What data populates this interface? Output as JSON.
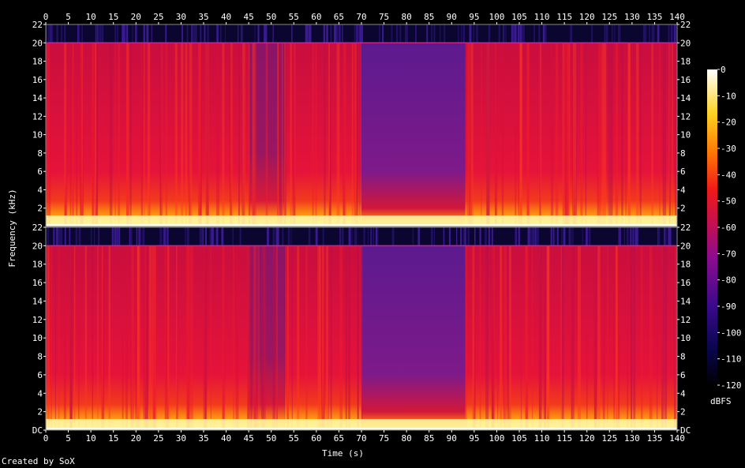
{
  "chart_data": {
    "type": "heatmap",
    "title": "",
    "xlabel": "Time (s)",
    "ylabel": "Frequency (kHz)",
    "xlim": [
      0,
      140
    ],
    "ylim": [
      0,
      22
    ],
    "x_ticks": [
      "0",
      "5",
      "10",
      "15",
      "20",
      "25",
      "30",
      "35",
      "40",
      "45",
      "50",
      "55",
      "60",
      "65",
      "70",
      "75",
      "80",
      "85",
      "90",
      "95",
      "100",
      "105",
      "110",
      "115",
      "120",
      "125",
      "130",
      "135",
      "140"
    ],
    "y_ticks_top": [
      "22",
      "20",
      "18",
      "16",
      "14",
      "12",
      "10",
      "8",
      "6",
      "4",
      "2"
    ],
    "y_ticks_bottom": [
      "22",
      "20",
      "18",
      "16",
      "14",
      "12",
      "10",
      "8",
      "6",
      "4",
      "2",
      "DC"
    ],
    "channels": [
      "top",
      "bottom"
    ],
    "segments": [
      {
        "start": 0,
        "end": 45,
        "level": "loud"
      },
      {
        "start": 45,
        "end": 53,
        "level": "quieter"
      },
      {
        "start": 53,
        "end": 70,
        "level": "loud"
      },
      {
        "start": 70,
        "end": 93,
        "level": "quiet"
      },
      {
        "start": 93,
        "end": 140,
        "level": "loud"
      }
    ],
    "colorbar": {
      "unit": "dBFS",
      "ticks": [
        "0",
        "-10",
        "-20",
        "-30",
        "-40",
        "-50",
        "-60",
        "-70",
        "-80",
        "-90",
        "-100",
        "-110",
        "-120"
      ],
      "range": [
        -120,
        0
      ]
    }
  },
  "footer": "Created by SoX"
}
